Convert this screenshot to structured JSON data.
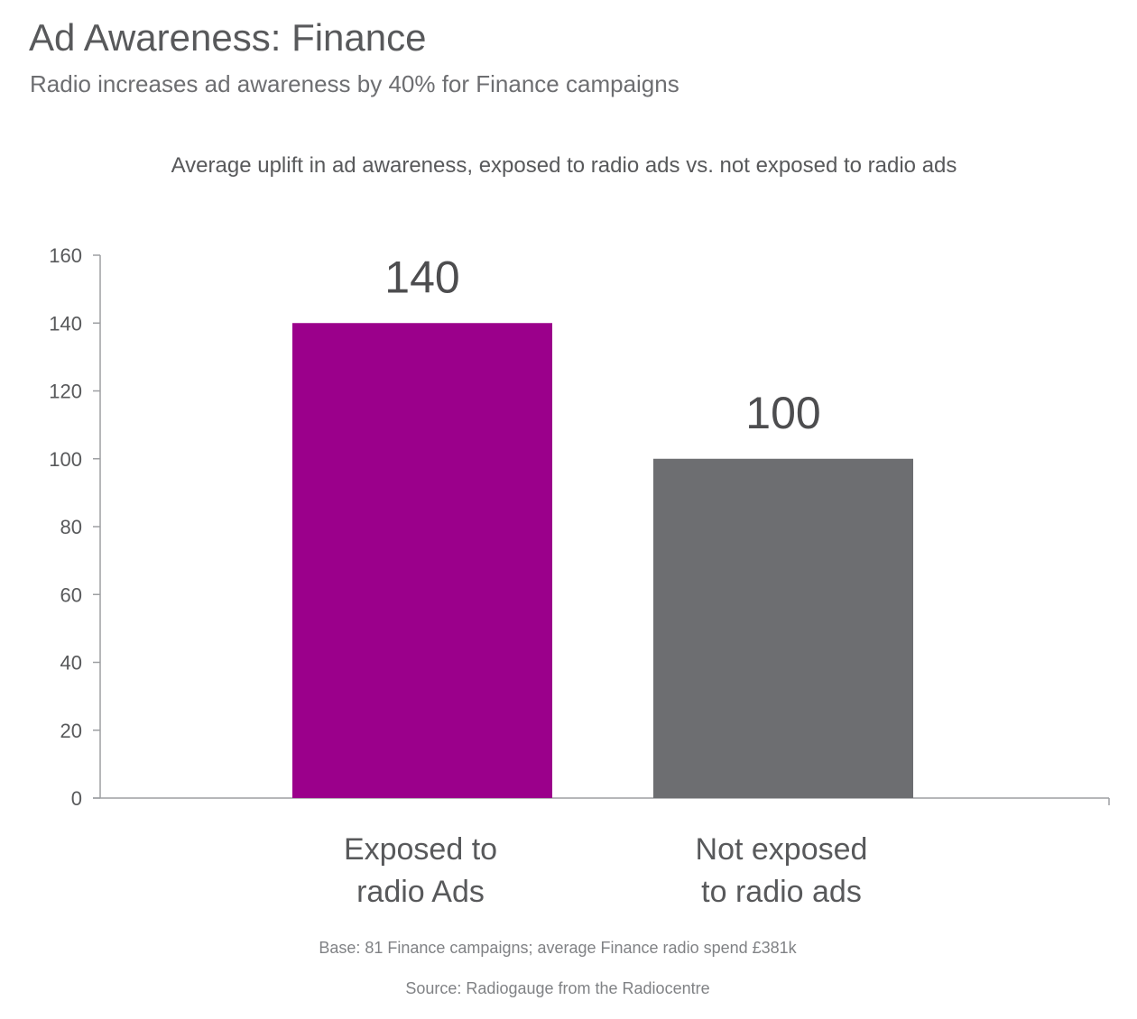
{
  "header": {
    "title": "Ad Awareness: Finance",
    "subtitle": "Radio increases ad awareness by 40% for Finance campaigns"
  },
  "chart_data": {
    "type": "bar",
    "title": "Average uplift in ad awareness, exposed to radio ads vs. not exposed to radio ads",
    "categories": [
      [
        "Exposed to",
        "radio Ads"
      ],
      [
        "Not exposed",
        "to radio ads"
      ]
    ],
    "values": [
      140,
      100
    ],
    "value_labels": [
      "140",
      "100"
    ],
    "colors": [
      "#9b008b",
      "#6d6e71"
    ],
    "xlabel": "",
    "ylabel": "",
    "ylim": [
      0,
      160
    ],
    "yticks": [
      0,
      20,
      40,
      60,
      80,
      100,
      120,
      140,
      160
    ],
    "grid": false,
    "legend": "none"
  },
  "footer": {
    "base_note": "Base: 81 Finance campaigns; average Finance radio spend £381k",
    "source_note": "Source: Radiogauge from the Radiocentre"
  }
}
